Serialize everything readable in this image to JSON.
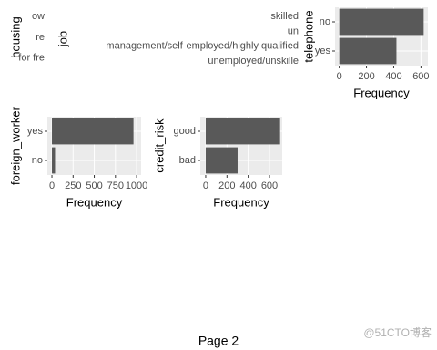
{
  "chart_data": [
    {
      "type": "bar",
      "y_label": "housing",
      "categories": [
        "ow",
        "re",
        "for fre"
      ]
    },
    {
      "type": "bar",
      "y_label": "job",
      "categories": [
        "skilled",
        "un",
        "management/self-employed/highly qualified",
        "unemployed/unskille"
      ]
    },
    {
      "type": "bar",
      "y_label": "telephone",
      "x_label": "Frequency",
      "categories": [
        "no",
        "yes"
      ],
      "values": [
        620,
        420
      ],
      "color": "#595959",
      "xlim": [
        -31,
        651
      ],
      "xticks": [
        0,
        200,
        400,
        600
      ],
      "grid": true
    },
    {
      "type": "bar",
      "y_label": "foreign_worker",
      "x_label": "Frequency",
      "categories": [
        "yes",
        "no"
      ],
      "values": [
        963,
        37
      ],
      "color": "#595959",
      "xlim": [
        -54,
        1053
      ],
      "xticks": [
        0,
        250,
        500,
        750,
        1000
      ],
      "grid": true
    },
    {
      "type": "bar",
      "y_label": "credit_risk",
      "x_label": "Frequency",
      "categories": [
        "good",
        "bad"
      ],
      "values": [
        700,
        300
      ],
      "color": "#595959",
      "xlim": [
        -51,
        720
      ],
      "xticks": [
        0,
        200,
        400,
        600
      ],
      "grid": true
    }
  ],
  "footer": "Page 2",
  "watermark": "@51CTO博客"
}
